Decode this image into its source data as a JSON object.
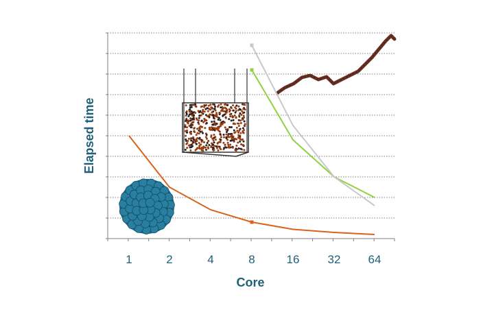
{
  "chart_data": {
    "type": "line",
    "xlabel": "Core",
    "ylabel": "Elapsed time",
    "categories": [
      "1",
      "2",
      "4",
      "8",
      "16",
      "32",
      "64"
    ],
    "ylim": [
      0,
      10
    ],
    "grid": true,
    "legend": "none",
    "series": [
      {
        "color": "#d9621c",
        "x": [
          "1",
          "2",
          "4",
          "8",
          "16",
          "32",
          "64"
        ],
        "values": [
          5.0,
          2.5,
          1.4,
          0.8,
          0.45,
          0.3,
          0.2
        ]
      },
      {
        "color": "#8fd13f",
        "x": [
          "8",
          "16",
          "32",
          "64"
        ],
        "values": [
          8.2,
          4.8,
          3.0,
          2.0
        ]
      },
      {
        "color": "#c8c8c8",
        "x": [
          "8",
          "16",
          "32",
          "64"
        ],
        "values": [
          9.4,
          5.5,
          3.0,
          1.6
        ]
      }
    ],
    "images": [
      {
        "icon": "nanoparticle-cluster",
        "color": "#1f6a86"
      },
      {
        "icon": "liquid-box",
        "color": "#8a3a12"
      },
      {
        "icon": "polymer-chain",
        "color": "#6b2e22"
      }
    ]
  }
}
